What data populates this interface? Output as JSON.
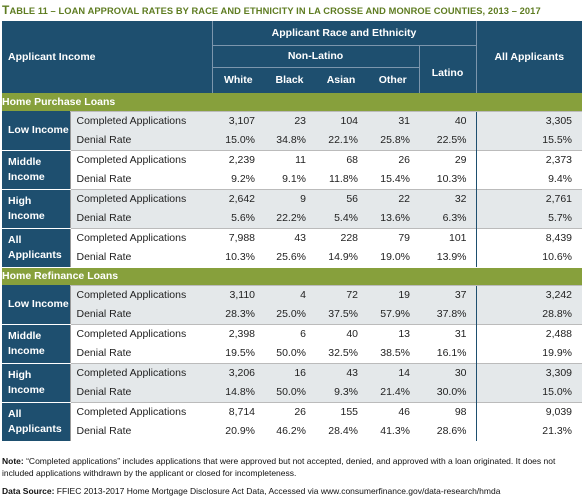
{
  "title": {
    "prefix": "T",
    "rest": "able 11 – Loan Approval Rates by Race and Ethnicity in La Crosse and Monroe Counties, 2013 – 2017",
    "full": "TABLE 11 – LOAN APPROVAL RATES BY RACE AND ETHNICITY IN LA CROSSE AND MONROE COUNTIES, 2013 – 2017"
  },
  "header": {
    "applicant_income": "Applicant Income",
    "race_ethnicity": "Applicant Race and Ethnicity",
    "non_latino": "Non-Latino",
    "all_applicants": "All Applicants",
    "columns": [
      "White",
      "Black",
      "Asian",
      "Other",
      "Latino"
    ]
  },
  "row_labels": {
    "completed": "Completed Applications",
    "denial": "Denial Rate"
  },
  "sections": [
    {
      "title": "Home Purchase Loans",
      "groups": [
        {
          "label": "Low Income",
          "completed": [
            "3,107",
            "23",
            "104",
            "31",
            "40",
            "3,305"
          ],
          "denial": [
            "15.0%",
            "34.8%",
            "22.1%",
            "25.8%",
            "22.5%",
            "15.5%"
          ]
        },
        {
          "label": "Middle Income",
          "completed": [
            "2,239",
            "11",
            "68",
            "26",
            "29",
            "2,373"
          ],
          "denial": [
            "9.2%",
            "9.1%",
            "11.8%",
            "15.4%",
            "10.3%",
            "9.4%"
          ]
        },
        {
          "label": "High Income",
          "completed": [
            "2,642",
            "9",
            "56",
            "22",
            "32",
            "2,761"
          ],
          "denial": [
            "5.6%",
            "22.2%",
            "5.4%",
            "13.6%",
            "6.3%",
            "5.7%"
          ]
        },
        {
          "label": "All Applicants",
          "completed": [
            "7,988",
            "43",
            "228",
            "79",
            "101",
            "8,439"
          ],
          "denial": [
            "10.3%",
            "25.6%",
            "14.9%",
            "19.0%",
            "13.9%",
            "10.6%"
          ]
        }
      ]
    },
    {
      "title": "Home Refinance Loans",
      "groups": [
        {
          "label": "Low Income",
          "completed": [
            "3,110",
            "4",
            "72",
            "19",
            "37",
            "3,242"
          ],
          "denial": [
            "28.3%",
            "25.0%",
            "37.5%",
            "57.9%",
            "37.8%",
            "28.8%"
          ]
        },
        {
          "label": "Middle Income",
          "completed": [
            "2,398",
            "6",
            "40",
            "13",
            "31",
            "2,488"
          ],
          "denial": [
            "19.5%",
            "50.0%",
            "32.5%",
            "38.5%",
            "16.1%",
            "19.9%"
          ]
        },
        {
          "label": "High Income",
          "completed": [
            "3,206",
            "16",
            "43",
            "14",
            "30",
            "3,309"
          ],
          "denial": [
            "14.8%",
            "50.0%",
            "9.3%",
            "21.4%",
            "30.0%",
            "15.0%"
          ]
        },
        {
          "label": "All Applicants",
          "completed": [
            "8,714",
            "26",
            "155",
            "46",
            "98",
            "9,039"
          ],
          "denial": [
            "20.9%",
            "46.2%",
            "28.4%",
            "41.3%",
            "28.6%",
            "21.3%"
          ]
        }
      ]
    }
  ],
  "note": {
    "label": "Note:",
    "text": " “Completed applications” includes applications that were approved but not accepted, denied, and approved with a loan originated. It does not included applications withdrawn by the applicant or closed for incompleteness."
  },
  "source": {
    "label": "Data Source:",
    "text": " FFIEC 2013-2017 Home Mortgage Disclosure Act Data, Accessed via www.consumerfinance.gov/data-research/hmda"
  },
  "colors": {
    "header_bg": "#1e4f6f",
    "section_bg": "#87a03c",
    "title_color": "#5e7c21",
    "shade": "#e4e8ea"
  }
}
